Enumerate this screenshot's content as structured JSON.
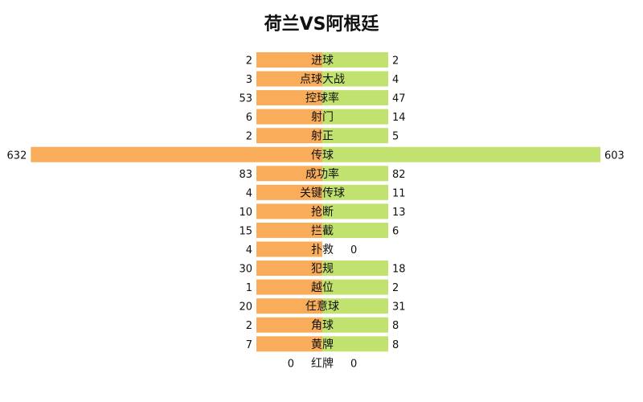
{
  "chart_data": {
    "type": "bar",
    "title": "荷兰VS阿根廷",
    "colors": {
      "left": "#F9AD5B",
      "right": "#C1E26E"
    },
    "categories": [
      "进球",
      "点球大战",
      "控球率",
      "射门",
      "射正",
      "传球",
      "成功率",
      "关键传球",
      "抢断",
      "拦截",
      "扑救",
      "犯规",
      "越位",
      "任意球",
      "角球",
      "黄牌",
      "红牌"
    ],
    "series": [
      {
        "values": [
          2,
          3,
          53,
          6,
          2,
          632,
          83,
          4,
          10,
          15,
          4,
          30,
          1,
          20,
          2,
          7,
          0
        ]
      },
      {
        "values": [
          2,
          4,
          47,
          14,
          5,
          603,
          82,
          11,
          13,
          6,
          0,
          18,
          2,
          31,
          8,
          8,
          0
        ]
      }
    ]
  }
}
